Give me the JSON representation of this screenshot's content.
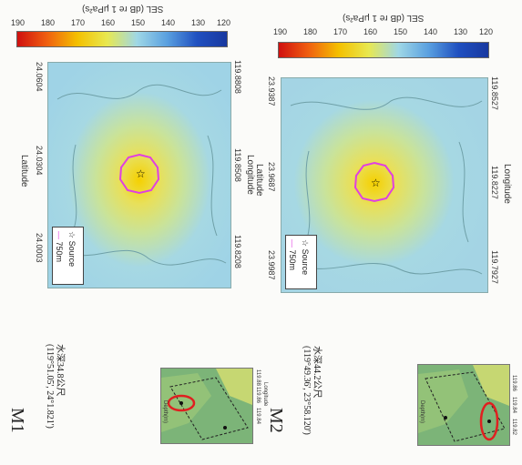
{
  "panels": [
    {
      "id": "M1",
      "label": "M1",
      "coords": "(119°51.05', 24°1.821')",
      "depth": "水深34.8公尺",
      "source_label": "Source",
      "radius_label": "750m",
      "lat_ticks": [
        "24.0604",
        "24.0304",
        "24.0003"
      ],
      "lon_ticks": [
        "119.8208",
        "119.8508",
        "119.8808"
      ],
      "lat_title": "Latitude",
      "lon_title": "Longitude",
      "cbar_title": "SEL (dB re 1 μPa²s)",
      "cbar_ticks": [
        "190",
        "180",
        "170",
        "160",
        "150",
        "140",
        "130",
        "120"
      ],
      "inset_ticks": [
        "119.84",
        "119.86",
        "119.88"
      ],
      "inset_title": "Longitude",
      "inset_legend": "Depth(m)"
    },
    {
      "id": "M2",
      "label": "M2",
      "coords": "(119°49.36', 23°58.120')",
      "depth": "水深44.2公尺",
      "source_label": "Source",
      "radius_label": "750m",
      "lat_ticks": [
        "23.9987",
        "23.9687",
        "23.9387"
      ],
      "lon_ticks": [
        "119.7927",
        "119.8227",
        "119.8527"
      ],
      "lat_title": "Latitude",
      "lon_title": "Longitude",
      "cbar_title": "SEL (dB re 1 μPa²s)",
      "cbar_ticks": [
        "190",
        "180",
        "170",
        "160",
        "150",
        "140",
        "130",
        "120"
      ],
      "inset_ticks": [
        "119.82",
        "119.84",
        "119.86"
      ],
      "inset_title": "Longitude",
      "inset_legend": "Depth(m)"
    }
  ],
  "colors": {
    "heat_center": "#f5c400",
    "heat_mid": "#d8e46a",
    "heat_outer": "#8ed0e2",
    "background_map": "#a8d8e8",
    "ring": "#e040e0",
    "inset_green": "#78b070",
    "inset_yellow": "#d8e070",
    "highlight_ellipse": "#e02020"
  }
}
